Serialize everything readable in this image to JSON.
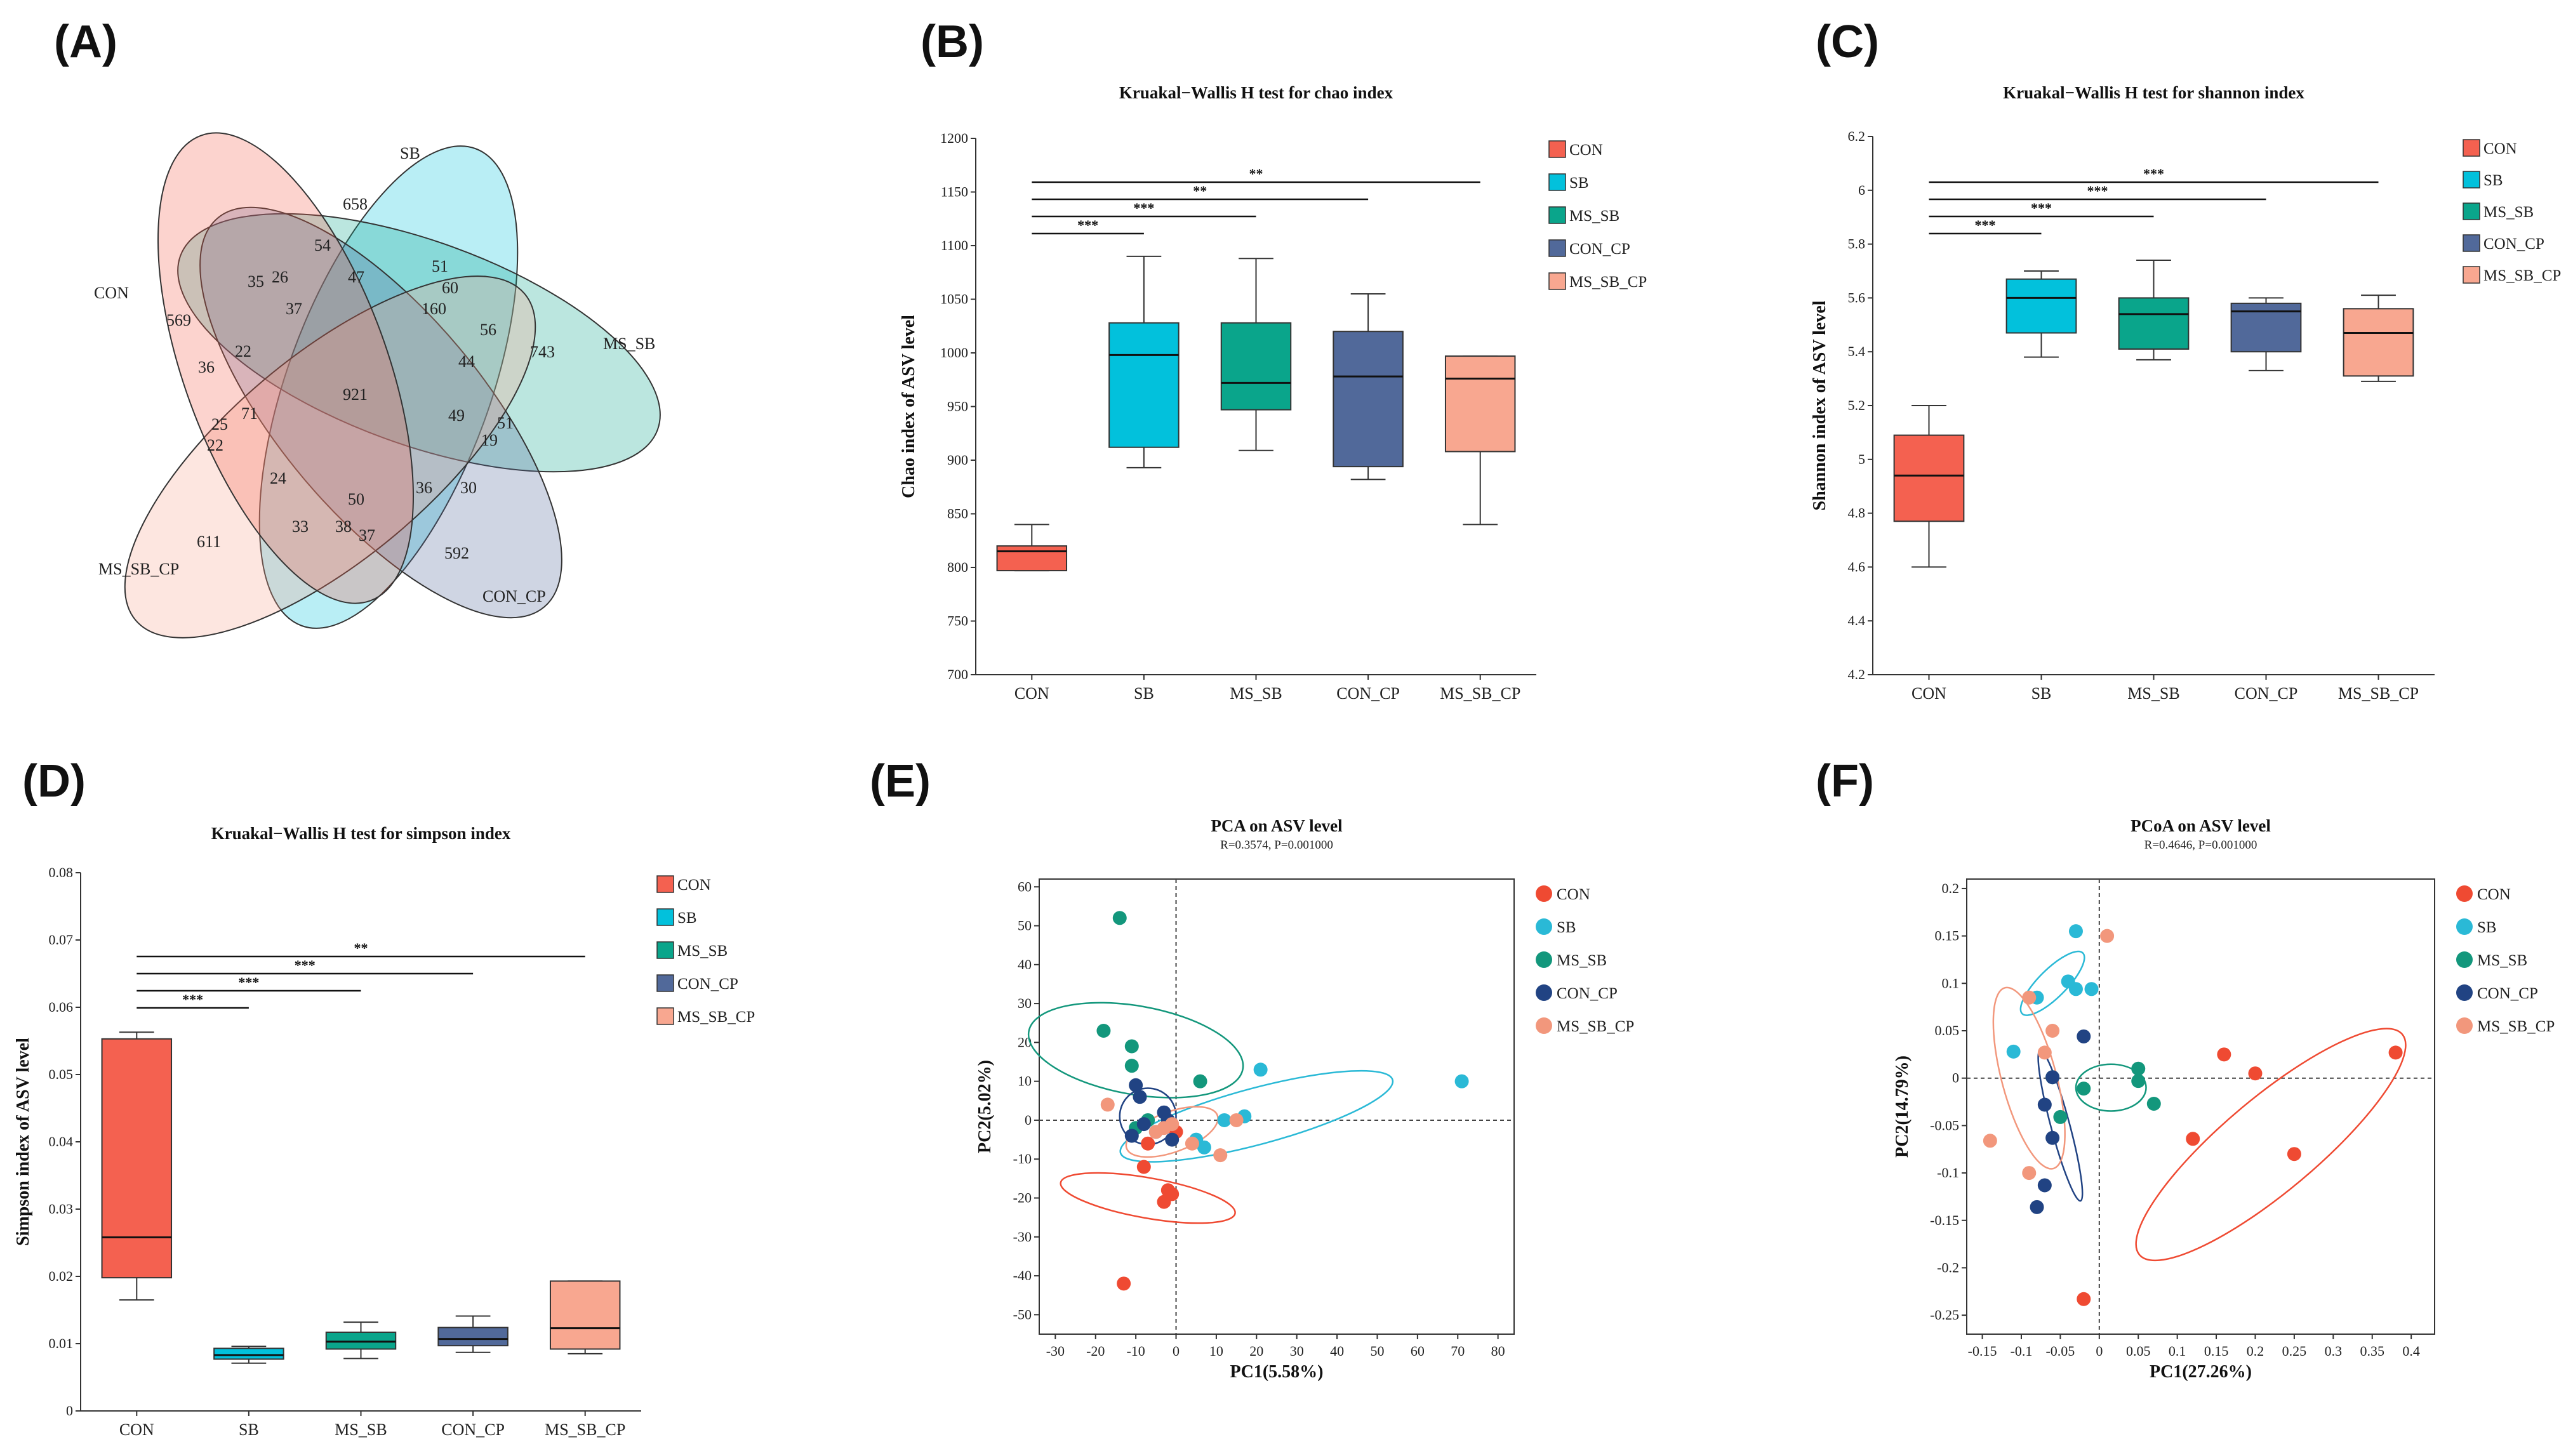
{
  "colors": {
    "CON": "#f46150",
    "SB": "#02c1dc",
    "MS_SB": "#0aa58b",
    "CON_CP": "#51699a",
    "MS_SB_CP": "#f8a790"
  },
  "scatter_colors": {
    "CON": "#ef4a32",
    "SB": "#2ab9d6",
    "MS_SB": "#13977c",
    "CON_CP": "#214383",
    "MS_SB_CP": "#f2977c"
  },
  "chart_data": [
    {
      "panel": "(A)",
      "type": "venn",
      "sets": [
        "SB",
        "CON",
        "MS_SB",
        "MS_SB_CP",
        "CON_CP"
      ],
      "counts": {
        "SB_only": "658",
        "CON_only": "569",
        "MS_SB_only": "743",
        "MS_SB_CP_only": "611",
        "CON_CP_only": "592",
        "all": "921",
        "r1": "54",
        "r2": "35",
        "r3": "26",
        "r4": "47",
        "r5": "51",
        "r6": "37",
        "r7": "60",
        "r8": "160",
        "r9": "56",
        "r10": "36",
        "r11": "22",
        "r12": "44",
        "r13": "71",
        "r14": "49",
        "r15": "51",
        "r16": "25",
        "r17": "19",
        "r18": "22",
        "r19": "24",
        "r20": "50",
        "r21": "36",
        "r22": "30",
        "r23": "33",
        "r24": "38",
        "r25": "37"
      }
    },
    {
      "panel": "(B)",
      "type": "box",
      "title": "Kruakal−Wallis H test for chao index",
      "ylabel": "Chao index of ASV level",
      "ylim": [
        700,
        1200
      ],
      "yticks": [
        700,
        750,
        800,
        850,
        900,
        950,
        1000,
        1050,
        1100,
        1150,
        1200
      ],
      "categories": [
        "CON",
        "SB",
        "MS_SB",
        "CON_CP",
        "MS_SB_CP"
      ],
      "boxes": [
        {
          "min": 797,
          "q1": 797,
          "median": 815,
          "q3": 820,
          "max": 840
        },
        {
          "min": 893,
          "q1": 912,
          "median": 998,
          "q3": 1028,
          "max": 1090
        },
        {
          "min": 909,
          "q1": 947,
          "median": 972,
          "q3": 1028,
          "max": 1088
        },
        {
          "min": 882,
          "q1": 894,
          "median": 978,
          "q3": 1020,
          "max": 1055
        },
        {
          "min": 840,
          "q1": 908,
          "median": 976,
          "q3": 997,
          "max": 997
        }
      ],
      "significance": [
        {
          "from": "CON",
          "to": "SB",
          "label": "***"
        },
        {
          "from": "CON",
          "to": "MS_SB",
          "label": "***"
        },
        {
          "from": "CON",
          "to": "CON_CP",
          "label": "**"
        },
        {
          "from": "CON",
          "to": "MS_SB_CP",
          "label": "**"
        }
      ]
    },
    {
      "panel": "(C)",
      "type": "box",
      "title": "Kruakal−Wallis H test for shannon index",
      "ylabel": "Shannon index of ASV level",
      "ylim": [
        4.2,
        6.2
      ],
      "yticks": [
        "4.2",
        "4.4",
        "4.6",
        "4.8",
        "5",
        "5.2",
        "5.4",
        "5.6",
        "5.8",
        "6",
        "6.2"
      ],
      "categories": [
        "CON",
        "SB",
        "MS_SB",
        "CON_CP",
        "MS_SB_CP"
      ],
      "boxes": [
        {
          "min": 4.6,
          "q1": 4.77,
          "median": 4.94,
          "q3": 5.09,
          "max": 5.2
        },
        {
          "min": 5.38,
          "q1": 5.47,
          "median": 5.6,
          "q3": 5.67,
          "max": 5.7
        },
        {
          "min": 5.37,
          "q1": 5.41,
          "median": 5.54,
          "q3": 5.6,
          "max": 5.74
        },
        {
          "min": 5.33,
          "q1": 5.4,
          "median": 5.55,
          "q3": 5.58,
          "max": 5.6
        },
        {
          "min": 5.29,
          "q1": 5.31,
          "median": 5.47,
          "q3": 5.56,
          "max": 5.61
        }
      ],
      "significance": [
        {
          "from": "CON",
          "to": "SB",
          "label": "***"
        },
        {
          "from": "CON",
          "to": "MS_SB",
          "label": "***"
        },
        {
          "from": "CON",
          "to": "CON_CP",
          "label": "***"
        },
        {
          "from": "CON",
          "to": "MS_SB_CP",
          "label": "***"
        }
      ]
    },
    {
      "panel": "(D)",
      "type": "box",
      "title": "Kruakal−Wallis H test for simpson index",
      "ylabel": "Simpson index of ASV level",
      "ylim": [
        0,
        0.08
      ],
      "yticks": [
        "0",
        "0.01",
        "0.02",
        "0.03",
        "0.04",
        "0.05",
        "0.06",
        "0.07",
        "0.08"
      ],
      "categories": [
        "CON",
        "SB",
        "MS_SB",
        "CON_CP",
        "MS_SB_CP"
      ],
      "boxes": [
        {
          "min": 0.0165,
          "q1": 0.0198,
          "median": 0.0258,
          "q3": 0.0553,
          "max": 0.0563
        },
        {
          "min": 0.0071,
          "q1": 0.0077,
          "median": 0.0083,
          "q3": 0.0093,
          "max": 0.0096
        },
        {
          "min": 0.0078,
          "q1": 0.0092,
          "median": 0.0103,
          "q3": 0.0117,
          "max": 0.0132
        },
        {
          "min": 0.0087,
          "q1": 0.0097,
          "median": 0.0107,
          "q3": 0.0124,
          "max": 0.0141
        },
        {
          "min": 0.0085,
          "q1": 0.0092,
          "median": 0.0123,
          "q3": 0.0193,
          "max": 0.0193
        }
      ],
      "significance": [
        {
          "from": "CON",
          "to": "SB",
          "label": "***"
        },
        {
          "from": "CON",
          "to": "MS_SB",
          "label": "***"
        },
        {
          "from": "CON",
          "to": "CON_CP",
          "label": "***"
        },
        {
          "from": "CON",
          "to": "MS_SB_CP",
          "label": "**"
        }
      ]
    },
    {
      "panel": "(E)",
      "type": "scatter",
      "title": "PCA on ASV level",
      "subtitle": "R=0.3574, P=0.001000",
      "xlabel": "PC1(5.58%)",
      "ylabel": "PC2(5.02%)",
      "xlim": [
        -34,
        84
      ],
      "ylim": [
        -55,
        62
      ],
      "xticks": [
        "-30",
        "-20",
        "-10",
        "0",
        "10",
        "20",
        "30",
        "40",
        "50",
        "60",
        "70",
        "80"
      ],
      "yticks": [
        "-50",
        "-40",
        "-30",
        "-20",
        "-10",
        "0",
        "10",
        "20",
        "30",
        "40",
        "50",
        "60"
      ],
      "groups": [
        "CON",
        "SB",
        "MS_SB",
        "CON_CP",
        "MS_SB_CP"
      ],
      "points": {
        "CON": [
          [
            -7,
            -6
          ],
          [
            -2,
            -18
          ],
          [
            -1,
            -19
          ],
          [
            -3,
            -21
          ],
          [
            -13,
            -42
          ],
          [
            -8,
            -12
          ],
          [
            0,
            -3
          ]
        ],
        "SB": [
          [
            21,
            13
          ],
          [
            71,
            10
          ],
          [
            17,
            1
          ],
          [
            12,
            0
          ],
          [
            5,
            -5
          ],
          [
            7,
            -7
          ],
          [
            -5,
            -3
          ]
        ],
        "MS_SB": [
          [
            -14,
            52
          ],
          [
            -18,
            23
          ],
          [
            -11,
            19
          ],
          [
            -11,
            14
          ],
          [
            6,
            10
          ],
          [
            -10,
            -2
          ],
          [
            -7,
            0
          ]
        ],
        "CON_CP": [
          [
            -10,
            9
          ],
          [
            -9,
            6
          ],
          [
            -8,
            -1
          ],
          [
            -11,
            -4
          ],
          [
            -1,
            -5
          ],
          [
            -2,
            0
          ],
          [
            -3,
            2
          ]
        ],
        "MS_SB_CP": [
          [
            -17,
            4
          ],
          [
            -5,
            -3
          ],
          [
            4,
            -6
          ],
          [
            11,
            -9
          ],
          [
            15,
            0
          ],
          [
            -1,
            -1
          ],
          [
            -3,
            -2
          ]
        ]
      },
      "ellipses": {
        "CON": {
          "cx": -7,
          "cy": -20,
          "rx": 5,
          "ry": 22,
          "angle": -80
        },
        "SB": {
          "cx": 20,
          "cy": 1,
          "rx": 35,
          "ry": 7,
          "angle": -15
        },
        "MS_SB": {
          "cx": -10,
          "cy": 18,
          "rx": 11,
          "ry": 27,
          "angle": -80
        },
        "CON_CP": {
          "cx": -7,
          "cy": 1,
          "rx": 7,
          "ry": 7,
          "angle": 0
        },
        "MS_SB_CP": {
          "cx": -1,
          "cy": -3,
          "rx": 12,
          "ry": 5,
          "angle": -20
        }
      }
    },
    {
      "panel": "(F)",
      "type": "scatter",
      "title": "PCoA on ASV level",
      "subtitle": "R=0.4646, P=0.001000",
      "xlabel": "PC1(27.26%)",
      "ylabel": "PC2(14.79%)",
      "xlim": [
        -0.17,
        0.43
      ],
      "ylim": [
        -0.27,
        0.21
      ],
      "xticks": [
        "-0.15",
        "-0.1",
        "-0.05",
        "0",
        "0.05",
        "0.1",
        "0.15",
        "0.2",
        "0.25",
        "0.3",
        "0.35",
        "0.4"
      ],
      "yticks": [
        "-0.25",
        "-0.2",
        "-0.15",
        "-0.1",
        "-0.05",
        "0",
        "0.05",
        "0.1",
        "0.15",
        "0.2"
      ],
      "groups": [
        "CON",
        "SB",
        "MS_SB",
        "CON_CP",
        "MS_SB_CP"
      ],
      "points": {
        "CON": [
          [
            0.38,
            0.027
          ],
          [
            0.16,
            0.025
          ],
          [
            0.2,
            0.005
          ],
          [
            0.12,
            -0.064
          ],
          [
            0.25,
            -0.08
          ],
          [
            -0.02,
            -0.233
          ]
        ],
        "SB": [
          [
            -0.03,
            0.155
          ],
          [
            -0.04,
            0.102
          ],
          [
            -0.03,
            0.094
          ],
          [
            -0.01,
            0.094
          ],
          [
            -0.08,
            0.085
          ],
          [
            -0.11,
            0.028
          ]
        ],
        "MS_SB": [
          [
            0.05,
            0.01
          ],
          [
            0.05,
            -0.003
          ],
          [
            0.07,
            -0.027
          ],
          [
            -0.02,
            -0.011
          ],
          [
            -0.06,
            0.001
          ],
          [
            -0.05,
            -0.041
          ]
        ],
        "CON_CP": [
          [
            -0.02,
            0.044
          ],
          [
            -0.06,
            0.001
          ],
          [
            -0.07,
            -0.028
          ],
          [
            -0.06,
            -0.063
          ],
          [
            -0.07,
            -0.113
          ],
          [
            -0.08,
            -0.136
          ]
        ],
        "MS_SB_CP": [
          [
            0.01,
            0.15
          ],
          [
            -0.09,
            0.085
          ],
          [
            -0.06,
            0.05
          ],
          [
            -0.07,
            0.027
          ],
          [
            -0.14,
            -0.066
          ],
          [
            -0.09,
            -0.1
          ]
        ]
      },
      "ellipses": {
        "CON": {
          "cx": 0.22,
          "cy": -0.07,
          "rx": 0.22,
          "ry": 0.06,
          "angle": -40
        },
        "SB": {
          "cx": -0.06,
          "cy": 0.1,
          "rx": 0.055,
          "ry": 0.018,
          "angle": -45
        },
        "MS_SB": {
          "cx": 0.015,
          "cy": -0.01,
          "rx": 0.045,
          "ry": 0.03,
          "angle": 0
        },
        "CON_CP": {
          "cx": -0.05,
          "cy": -0.05,
          "rx": 0.1,
          "ry": 0.012,
          "angle": 75
        },
        "MS_SB_CP": {
          "cx": -0.09,
          "cy": 0.0,
          "rx": 0.12,
          "ry": 0.035,
          "angle": 75
        }
      }
    }
  ]
}
